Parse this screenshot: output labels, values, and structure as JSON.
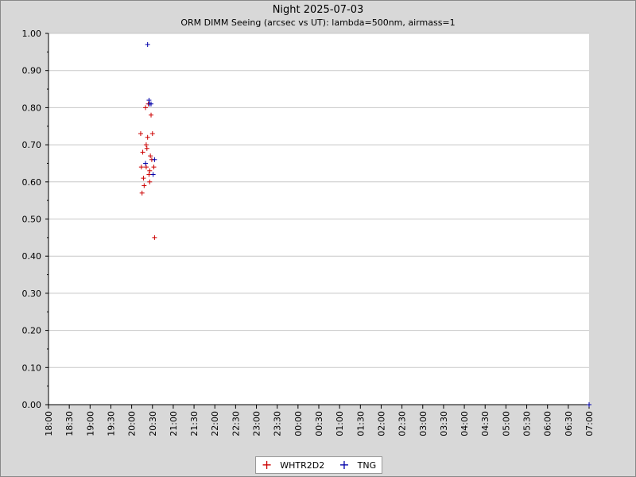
{
  "chart_data": {
    "type": "scatter",
    "title": "Night 2025-07-03",
    "subtitle": "ORM DIMM Seeing (arcsec vs UT): lambda=500nm, airmass=1",
    "x_ticks": [
      "18:00",
      "18:30",
      "19:00",
      "19:30",
      "20:00",
      "20:30",
      "21:00",
      "21:30",
      "22:00",
      "22:30",
      "23:00",
      "23:30",
      "00:00",
      "00:30",
      "01:00",
      "01:30",
      "02:00",
      "02:30",
      "03:00",
      "03:30",
      "04:00",
      "04:30",
      "05:00",
      "05:30",
      "06:00",
      "06:30",
      "07:00"
    ],
    "y_ticks": [
      "0.00",
      "0.10",
      "0.20",
      "0.30",
      "0.40",
      "0.50",
      "0.60",
      "0.70",
      "0.80",
      "0.90",
      "1.00"
    ],
    "xlim": [
      "18:00",
      "07:00"
    ],
    "ylim": [
      0,
      1
    ],
    "grid": "horizontal",
    "legend_position": "bottom",
    "series": [
      {
        "name": "WHTR2D2",
        "color": "#cc0000",
        "points": [
          {
            "x": "20:13",
            "y": 0.73
          },
          {
            "x": "20:14",
            "y": 0.64
          },
          {
            "x": "20:15",
            "y": 0.57
          },
          {
            "x": "20:16",
            "y": 0.68
          },
          {
            "x": "20:17",
            "y": 0.61
          },
          {
            "x": "20:18",
            "y": 0.59
          },
          {
            "x": "20:20",
            "y": 0.8
          },
          {
            "x": "20:21",
            "y": 0.7
          },
          {
            "x": "20:21",
            "y": 0.64
          },
          {
            "x": "20:22",
            "y": 0.69
          },
          {
            "x": "20:23",
            "y": 0.72
          },
          {
            "x": "20:24",
            "y": 0.81
          },
          {
            "x": "20:25",
            "y": 0.62
          },
          {
            "x": "20:26",
            "y": 0.63
          },
          {
            "x": "20:26",
            "y": 0.6
          },
          {
            "x": "20:27",
            "y": 0.67
          },
          {
            "x": "20:28",
            "y": 0.78
          },
          {
            "x": "20:29",
            "y": 0.66
          },
          {
            "x": "20:30",
            "y": 0.73
          },
          {
            "x": "20:32",
            "y": 0.64
          },
          {
            "x": "20:33",
            "y": 0.45
          }
        ]
      },
      {
        "name": "TNG",
        "color": "#0000aa",
        "points": [
          {
            "x": "20:20",
            "y": 0.65
          },
          {
            "x": "20:23",
            "y": 0.97
          },
          {
            "x": "20:25",
            "y": 0.82
          },
          {
            "x": "20:26",
            "y": 0.81
          },
          {
            "x": "20:28",
            "y": 0.81
          },
          {
            "x": "20:31",
            "y": 0.62
          },
          {
            "x": "20:33",
            "y": 0.66
          },
          {
            "x": "07:00",
            "y": 0.0
          }
        ]
      }
    ]
  },
  "legend": {
    "items": [
      {
        "label": "WHTR2D2",
        "marker": "+",
        "color": "#cc0000"
      },
      {
        "label": "TNG",
        "marker": "+",
        "color": "#0000aa"
      }
    ]
  }
}
